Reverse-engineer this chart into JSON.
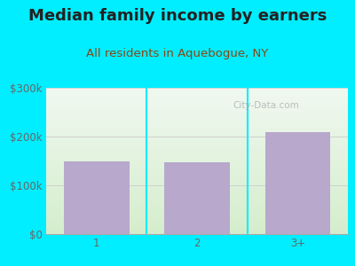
{
  "title": "Median family income by earners",
  "subtitle": "All residents in Aquebogue, NY",
  "categories": [
    "1",
    "2",
    "3+"
  ],
  "values": [
    150000,
    148000,
    210000
  ],
  "bar_color": "#b8a8cc",
  "outer_bg": "#00eeff",
  "plot_bg_top": "#f0f8f0",
  "plot_bg_bottom": "#d4edcc",
  "title_color": "#222222",
  "subtitle_color": "#8b4513",
  "tick_color": "#666666",
  "ylim": [
    0,
    300000
  ],
  "yticks": [
    0,
    100000,
    200000,
    300000
  ],
  "ytick_labels": [
    "$0",
    "$100k",
    "$200k",
    "$300k"
  ],
  "watermark": "City-Data.com",
  "title_fontsize": 13,
  "subtitle_fontsize": 9.5,
  "tick_fontsize": 8.5
}
